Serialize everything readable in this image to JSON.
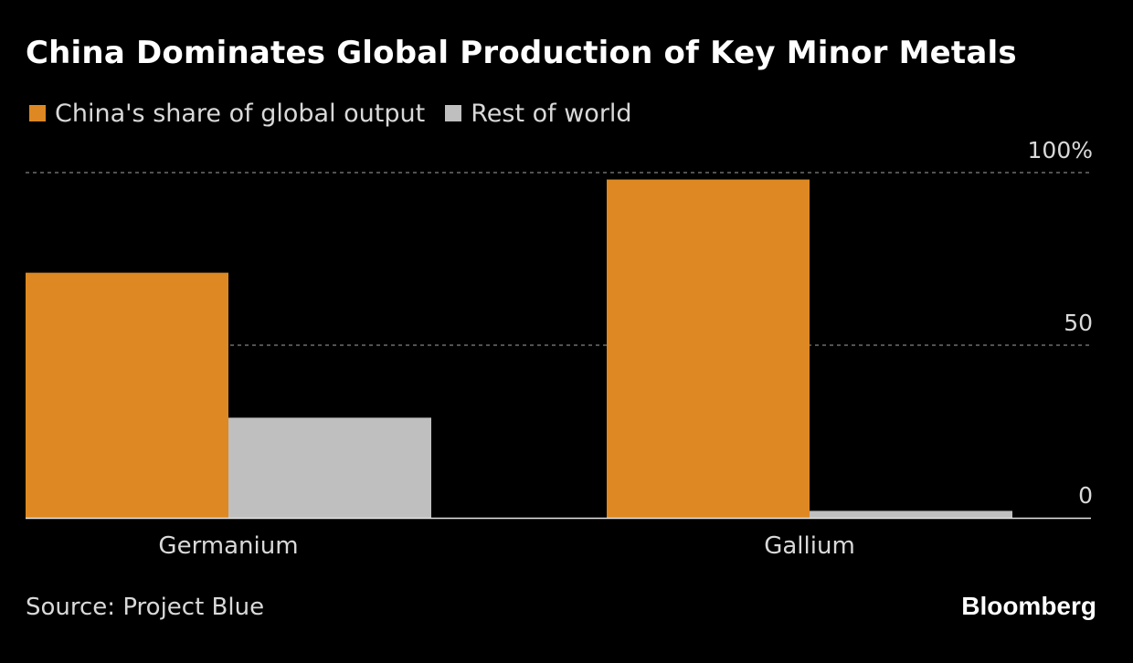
{
  "title": "China Dominates Global Production of Key Minor Metals",
  "source": "Source: Project Blue",
  "brand": "Bloomberg",
  "legend": [
    {
      "label": "China's share of global output",
      "color": "#DD8822"
    },
    {
      "label": "Rest of world",
      "color": "#BFBFBF"
    }
  ],
  "chart_data": {
    "type": "bar",
    "title": "China Dominates Global Production of Key Minor Metals",
    "categories": [
      "Germanium",
      "Gallium"
    ],
    "series": [
      {
        "name": "China's share of global output",
        "color": "#DD8822",
        "values": [
          71,
          98
        ]
      },
      {
        "name": "Rest of world",
        "color": "#BFBFBF",
        "values": [
          29,
          2
        ]
      }
    ],
    "ylim": [
      0,
      100
    ],
    "yticks": [
      0,
      50,
      100
    ],
    "ytick_labels": [
      "0",
      "50",
      "100%"
    ],
    "xlabel": "",
    "ylabel": "",
    "grid": true,
    "legend_position": "top-left"
  }
}
